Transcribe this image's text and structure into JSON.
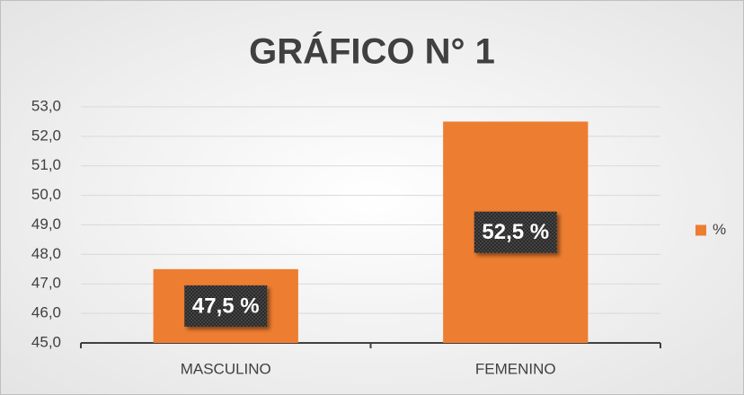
{
  "chart_data": {
    "type": "bar",
    "title": "GRÁFICO N° 1",
    "categories": [
      "MASCULINO",
      "FEMENINO"
    ],
    "series": [
      {
        "name": "%",
        "color": "#ed7d31",
        "values": [
          47.5,
          52.5
        ],
        "value_labels": [
          "47,5 %",
          "52,5 %"
        ]
      }
    ],
    "ylim": [
      45,
      53
    ],
    "yticks": [
      {
        "value": 45,
        "label": "45,0"
      },
      {
        "value": 46,
        "label": "46,0"
      },
      {
        "value": 47,
        "label": "47,0"
      },
      {
        "value": 48,
        "label": "48,0"
      },
      {
        "value": 49,
        "label": "49,0"
      },
      {
        "value": 50,
        "label": "50,0"
      },
      {
        "value": 51,
        "label": "51,0"
      },
      {
        "value": 52,
        "label": "52,0"
      },
      {
        "value": 53,
        "label": "53,0"
      }
    ],
    "grid": true,
    "legend": "right"
  }
}
